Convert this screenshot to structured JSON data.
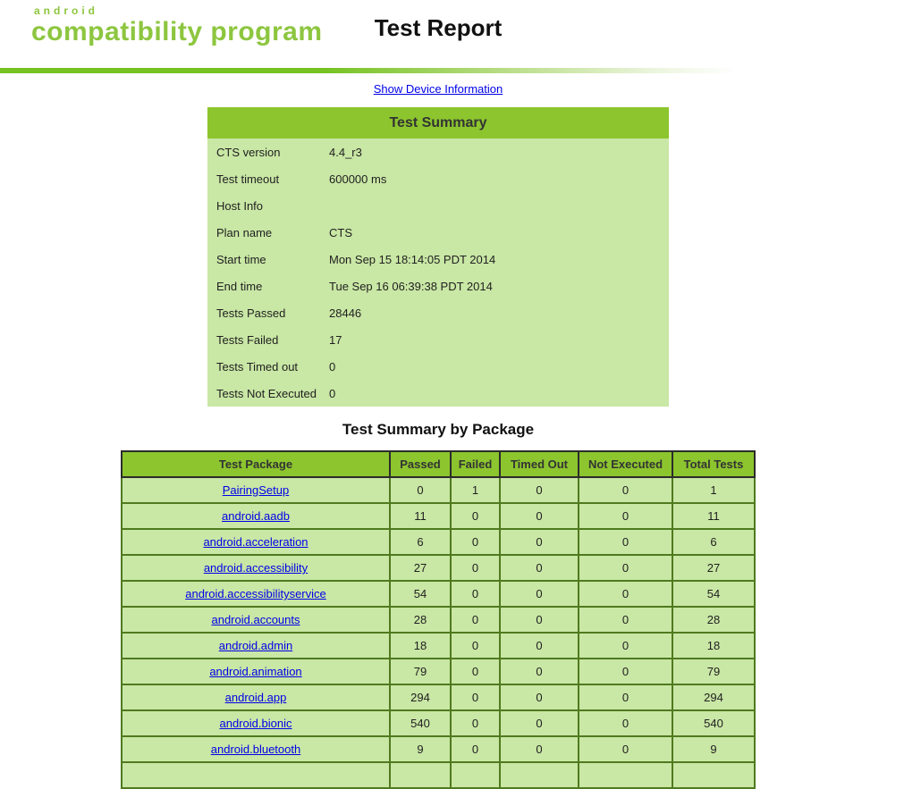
{
  "header": {
    "logo": {
      "brand": "android",
      "name": "compatibility program"
    },
    "title": "Test Report"
  },
  "links": {
    "device_info": "Show Device Information"
  },
  "test_summary": {
    "title": "Test Summary",
    "rows": [
      {
        "label": "CTS version",
        "value": "4.4_r3"
      },
      {
        "label": "Test timeout",
        "value": "600000 ms"
      },
      {
        "label": "Host Info",
        "value": ""
      },
      {
        "label": "Plan name",
        "value": "CTS"
      },
      {
        "label": "Start time",
        "value": "Mon Sep 15 18:14:05 PDT 2014"
      },
      {
        "label": "End time",
        "value": "Tue Sep 16 06:39:38 PDT 2014"
      },
      {
        "label": "Tests Passed",
        "value": "28446"
      },
      {
        "label": "Tests Failed",
        "value": "17"
      },
      {
        "label": "Tests Timed out",
        "value": "0"
      },
      {
        "label": "Tests Not Executed",
        "value": "0"
      }
    ]
  },
  "package_summary": {
    "title": "Test Summary by Package",
    "columns": [
      "Test Package",
      "Passed",
      "Failed",
      "Timed Out",
      "Not Executed",
      "Total Tests"
    ],
    "rows": [
      {
        "package": "PairingSetup",
        "passed": "0",
        "failed": "1",
        "timed_out": "0",
        "not_executed": "0",
        "total": "1"
      },
      {
        "package": "android.aadb",
        "passed": "11",
        "failed": "0",
        "timed_out": "0",
        "not_executed": "0",
        "total": "11"
      },
      {
        "package": "android.acceleration",
        "passed": "6",
        "failed": "0",
        "timed_out": "0",
        "not_executed": "0",
        "total": "6"
      },
      {
        "package": "android.accessibility",
        "passed": "27",
        "failed": "0",
        "timed_out": "0",
        "not_executed": "0",
        "total": "27"
      },
      {
        "package": "android.accessibilityservice",
        "passed": "54",
        "failed": "0",
        "timed_out": "0",
        "not_executed": "0",
        "total": "54"
      },
      {
        "package": "android.accounts",
        "passed": "28",
        "failed": "0",
        "timed_out": "0",
        "not_executed": "0",
        "total": "28"
      },
      {
        "package": "android.admin",
        "passed": "18",
        "failed": "0",
        "timed_out": "0",
        "not_executed": "0",
        "total": "18"
      },
      {
        "package": "android.animation",
        "passed": "79",
        "failed": "0",
        "timed_out": "0",
        "not_executed": "0",
        "total": "79"
      },
      {
        "package": "android.app",
        "passed": "294",
        "failed": "0",
        "timed_out": "0",
        "not_executed": "0",
        "total": "294"
      },
      {
        "package": "android.bionic",
        "passed": "540",
        "failed": "0",
        "timed_out": "0",
        "not_executed": "0",
        "total": "540"
      },
      {
        "package": "android.bluetooth",
        "passed": "9",
        "failed": "0",
        "timed_out": "0",
        "not_executed": "0",
        "total": "9"
      }
    ],
    "partial_next_row": true
  },
  "colors": {
    "accent_green": "#8cc52e",
    "pale_green": "#c9e7a5",
    "border_green": "#4f7a1f",
    "bar_green": "#76c221",
    "logo_green": "#8dc63f",
    "link_blue": "#0000e8"
  }
}
